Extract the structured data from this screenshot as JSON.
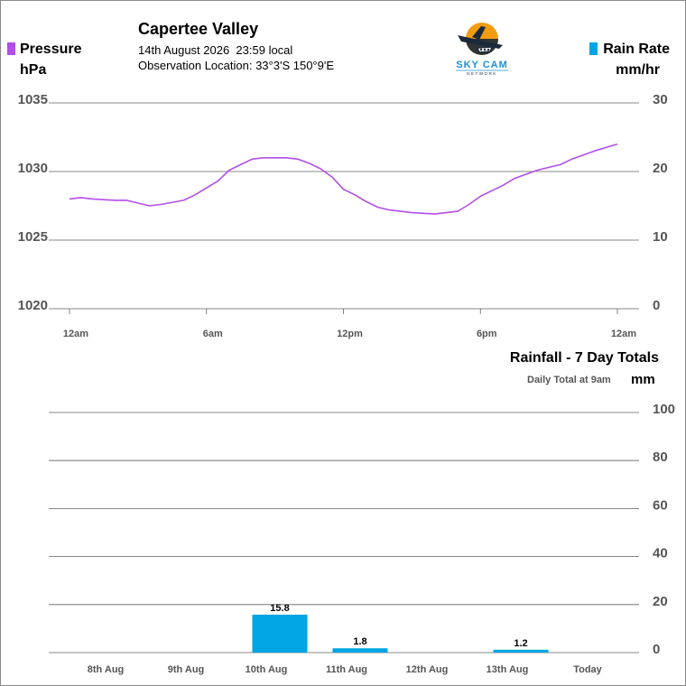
{
  "header": {
    "station_name": "Capertee Valley",
    "date_line": "14th August 2026  23:59 local",
    "location_line": "Observation Location: 33°3'S 150°9'E"
  },
  "logo": {
    "text": "SKY CAM",
    "subtext": "NETWORK",
    "icon": "plane-over-sun-logo"
  },
  "colors": {
    "pressure": "#b24fe8",
    "rain": "#00a5e3",
    "grid": "#606060",
    "axis_text": "#555555"
  },
  "chart_data": [
    {
      "type": "line",
      "left_legend": {
        "label": "Pressure",
        "unit": "hPa"
      },
      "right_legend": {
        "label": "Rain Rate",
        "unit": "mm/hr"
      },
      "x": [
        "12am",
        "6am",
        "12pm",
        "6pm",
        "12am"
      ],
      "x_hours": [
        0,
        24
      ],
      "left_axis": {
        "ticks": [
          "1035",
          "1030",
          "1025",
          "1020"
        ],
        "ylim": [
          1020,
          1035
        ]
      },
      "right_axis": {
        "ticks": [
          "30",
          "20",
          "10",
          "0"
        ],
        "ylim": [
          0,
          30
        ]
      },
      "series": [
        {
          "color": "#b24fe8",
          "points": [
            [
              0,
              1028.0
            ],
            [
              0.5,
              1028.1
            ],
            [
              1,
              1028.0
            ],
            [
              2,
              1027.9
            ],
            [
              2.5,
              1027.9
            ],
            [
              3,
              1027.7
            ],
            [
              3.5,
              1027.5
            ],
            [
              4,
              1027.6
            ],
            [
              5,
              1027.9
            ],
            [
              5.5,
              1028.3
            ],
            [
              6,
              1028.8
            ],
            [
              6.5,
              1029.3
            ],
            [
              7,
              1030.1
            ],
            [
              7.5,
              1030.5
            ],
            [
              8,
              1030.9
            ],
            [
              8.5,
              1031.0
            ],
            [
              9,
              1031.0
            ],
            [
              9.5,
              1031.0
            ],
            [
              10,
              1030.9
            ],
            [
              10.5,
              1030.6
            ],
            [
              11,
              1030.2
            ],
            [
              11.5,
              1029.6
            ],
            [
              12,
              1028.7
            ],
            [
              12.5,
              1028.3
            ],
            [
              13,
              1027.8
            ],
            [
              13.5,
              1027.4
            ],
            [
              14,
              1027.2
            ],
            [
              15,
              1027.0
            ],
            [
              16,
              1026.9
            ],
            [
              17,
              1027.1
            ],
            [
              17.5,
              1027.6
            ],
            [
              18,
              1028.2
            ],
            [
              18.5,
              1028.6
            ],
            [
              19,
              1029.0
            ],
            [
              19.5,
              1029.5
            ],
            [
              20,
              1029.8
            ],
            [
              20.5,
              1030.1
            ],
            [
              21,
              1030.3
            ],
            [
              21.5,
              1030.5
            ],
            [
              22,
              1030.9
            ],
            [
              22.5,
              1031.2
            ],
            [
              23,
              1031.5
            ],
            [
              24,
              1032.0
            ]
          ]
        }
      ]
    },
    {
      "type": "bar",
      "title": "Rainfall - 7 Day Totals",
      "subtitle": "Daily Total at 9am",
      "unit": "mm",
      "categories": [
        "8th Aug",
        "9th Aug",
        "10th Aug",
        "11th Aug",
        "12th Aug",
        "13th Aug",
        "Today"
      ],
      "values": [
        0,
        0,
        15.8,
        1.8,
        0,
        1.2,
        0
      ],
      "labels": [
        "",
        "",
        "15.8",
        "1.8",
        "",
        "1.2",
        ""
      ],
      "y_ticks": [
        "100",
        "80",
        "60",
        "40",
        "20",
        "0"
      ],
      "ylim": [
        0,
        100
      ],
      "color": "#00a5e3"
    }
  ]
}
